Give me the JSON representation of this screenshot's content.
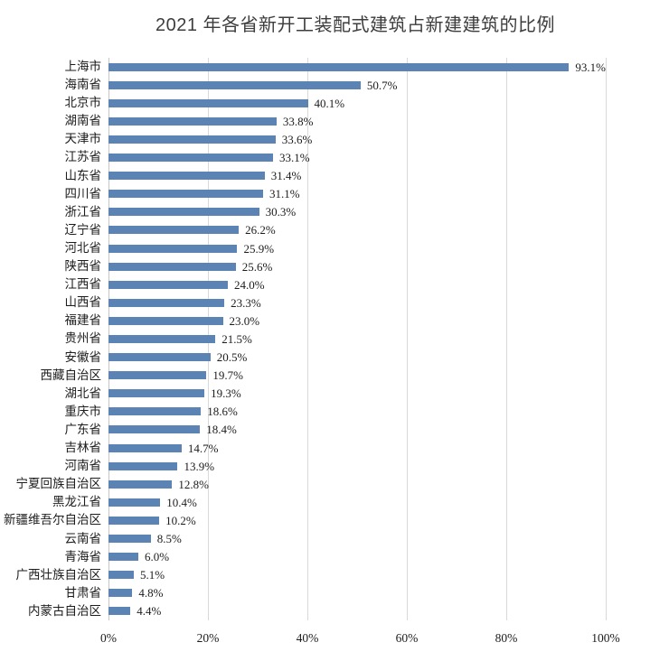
{
  "page": {
    "background": "#ffffff"
  },
  "header": {
    "title": "2021 年各省新开工装配式建筑占新建建筑的比例",
    "title_color": "#3d3d3d"
  },
  "chart_data": {
    "type": "bar",
    "orientation": "horizontal",
    "title": "2021 年各省新开工装配式建筑占新建建筑的比例",
    "xlabel": "",
    "ylabel": "",
    "xlim": [
      0,
      100
    ],
    "x_ticks": [
      "0%",
      "20%",
      "40%",
      "60%",
      "80%",
      "100%"
    ],
    "x_tick_values": [
      0,
      20,
      40,
      60,
      80,
      100
    ],
    "grid": "vertical",
    "legend": "none",
    "bar_color": "#5b84b4",
    "gridline_color": "#d9d9d9",
    "text_color": "#1c1c1c",
    "categories": [
      "上海市",
      "海南省",
      "北京市",
      "湖南省",
      "天津市",
      "江苏省",
      "山东省",
      "四川省",
      "浙江省",
      "辽宁省",
      "河北省",
      "陕西省",
      "江西省",
      "山西省",
      "福建省",
      "贵州省",
      "安徽省",
      "西藏自治区",
      "湖北省",
      "重庆市",
      "广东省",
      "吉林省",
      "河南省",
      "宁夏回族自治区",
      "黑龙江省",
      "新疆维吾尔自治区",
      "云南省",
      "青海省",
      "广西壮族自治区",
      "甘肃省",
      "内蒙古自治区"
    ],
    "values": [
      93.1,
      50.7,
      40.1,
      33.8,
      33.6,
      33.1,
      31.4,
      31.1,
      30.3,
      26.2,
      25.9,
      25.6,
      24.0,
      23.3,
      23.0,
      21.5,
      20.5,
      19.7,
      19.3,
      18.6,
      18.4,
      14.7,
      13.9,
      12.8,
      10.4,
      10.2,
      8.5,
      6.0,
      5.1,
      4.8,
      4.4
    ],
    "value_label_suffix": "%"
  }
}
